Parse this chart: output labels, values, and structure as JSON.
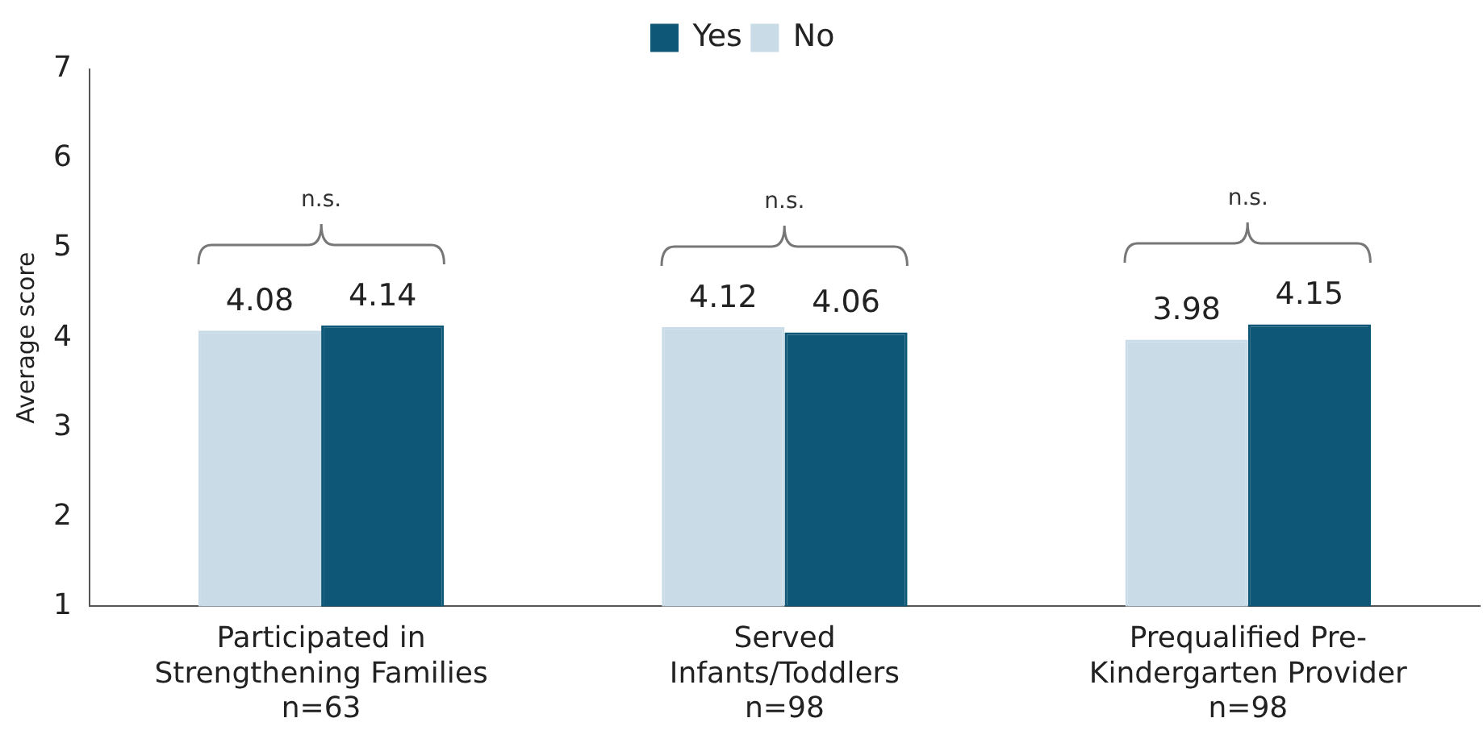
{
  "chart_data": {
    "type": "bar",
    "ylabel": "Average score",
    "categories": [
      "Participated in\nStrengthening Families\nn=63",
      "Served\nInfants/Toddlers\nn=98",
      "Prequalified Pre-\nKindergarten Provider\nn=98"
    ],
    "series": [
      {
        "name": "No",
        "color": "#c8dbe7",
        "values": [
          4.08,
          4.12,
          3.98
        ]
      },
      {
        "name": "Yes",
        "color": "#0e5777",
        "values": [
          4.14,
          4.06,
          4.15
        ]
      }
    ],
    "ylim": [
      1,
      7
    ],
    "yticks": [
      1,
      2,
      3,
      4,
      5,
      6,
      7
    ],
    "grid": false,
    "legend": "top",
    "data_labels": true,
    "annotations": [
      "n.s.",
      "n.s.",
      "n.s."
    ]
  }
}
